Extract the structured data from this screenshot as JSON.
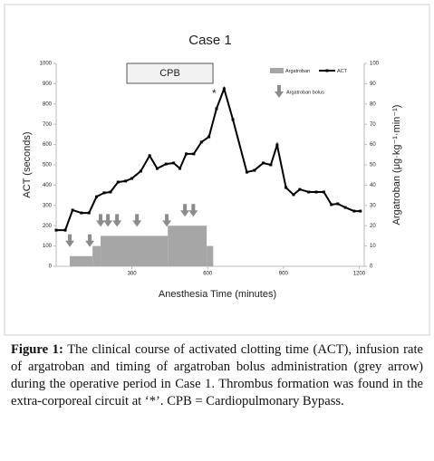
{
  "chart_data": {
    "type": "line",
    "title": "Case 1",
    "x_label": "Anesthesia Time (minutes)",
    "y_label": "ACT (seconds)",
    "y2_label": "Argatroban (μg·kg⁻¹·min⁻¹)",
    "xlim": [
      0,
      1220
    ],
    "xticks": [
      300,
      600,
      900,
      1200
    ],
    "ylim": [
      0,
      1000
    ],
    "yticks": [
      0,
      100,
      200,
      300,
      400,
      500,
      600,
      700,
      800,
      900,
      1000
    ],
    "y2lim": [
      0,
      100
    ],
    "y2ticks": [
      0,
      10,
      20,
      30,
      40,
      50,
      60,
      70,
      80,
      90,
      100
    ],
    "series": [
      {
        "name": "ACT",
        "color": "#000000",
        "x": [
          0,
          36,
          65,
          100,
          130,
          160,
          190,
          215,
          245,
          275,
          300,
          335,
          370,
          400,
          435,
          465,
          490,
          515,
          545,
          575,
          605,
          635,
          665,
          700,
          755,
          785,
          820,
          850,
          875,
          910,
          940,
          965,
          1000,
          1030,
          1060,
          1090,
          1115,
          1145,
          1180,
          1205
        ],
        "values": [
          178,
          178,
          277,
          263,
          263,
          343,
          362,
          366,
          415,
          420,
          433,
          469,
          545,
          482,
          504,
          509,
          482,
          554,
          554,
          612,
          638,
          777,
          875,
          723,
          464,
          473,
          509,
          500,
          598,
          388,
          353,
          379,
          366,
          366,
          366,
          304,
          308,
          290,
          272,
          272
        ]
      }
    ],
    "argatroban": {
      "name": "Argatroban",
      "color": "#a6a6a6",
      "axis": "y2",
      "edges": [
        54,
        144,
        176,
        442,
        596,
        622
      ],
      "values": [
        5,
        10,
        15,
        20,
        10
      ]
    },
    "bolus": {
      "name": "Argatroban bolus",
      "color": "#8c8c8c",
      "x": [
        54,
        133,
        176,
        205,
        241,
        320,
        438,
        510,
        543
      ]
    },
    "cpb": {
      "label": "CPB",
      "start": 280,
      "end": 621
    },
    "annotation": {
      "text": "*",
      "x": 665
    }
  },
  "caption": {
    "label": "Figure 1:",
    "text": "The clinical course of activated clotting time (ACT), infusion rate of argatroban and timing of argatroban bolus administration (grey arrow) during the operative period in Case 1. Thrombus formation was found in the extra-corporeal circuit at ‘*’. CPB = Cardiopulmonary Bypass."
  }
}
